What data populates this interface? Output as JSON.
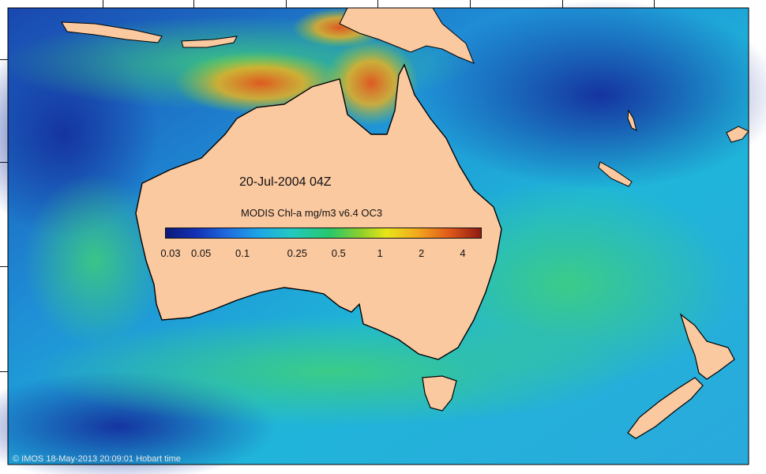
{
  "map": {
    "date_label": "20-Jul-2004 04Z",
    "product_label": "MODIS Chl-a mg/m3 v6.4 OC3",
    "copyright": "© IMOS 18-May-2013 20:09:01 Hobart time"
  },
  "colorbar": {
    "ticks": [
      {
        "label": "0.03",
        "value": 0.03
      },
      {
        "label": "0.05",
        "value": 0.05
      },
      {
        "label": "0.1",
        "value": 0.1
      },
      {
        "label": "0.25",
        "value": 0.25
      },
      {
        "label": "0.5",
        "value": 0.5
      },
      {
        "label": "1",
        "value": 1
      },
      {
        "label": "2",
        "value": 2
      },
      {
        "label": "4",
        "value": 4
      }
    ],
    "colors": [
      "#0a1a7a",
      "#1433b8",
      "#1f6fe0",
      "#1ea8e6",
      "#22c9c0",
      "#27c76a",
      "#8fd02a",
      "#e8e51a",
      "#f2a71c",
      "#e0581a",
      "#8f1a12"
    ]
  },
  "colors": {
    "land": "#fbc9a0",
    "ocean_deep": "#1f4fb8",
    "ocean_mid": "#1ea8e6",
    "coastal_high": "#e0581a"
  }
}
